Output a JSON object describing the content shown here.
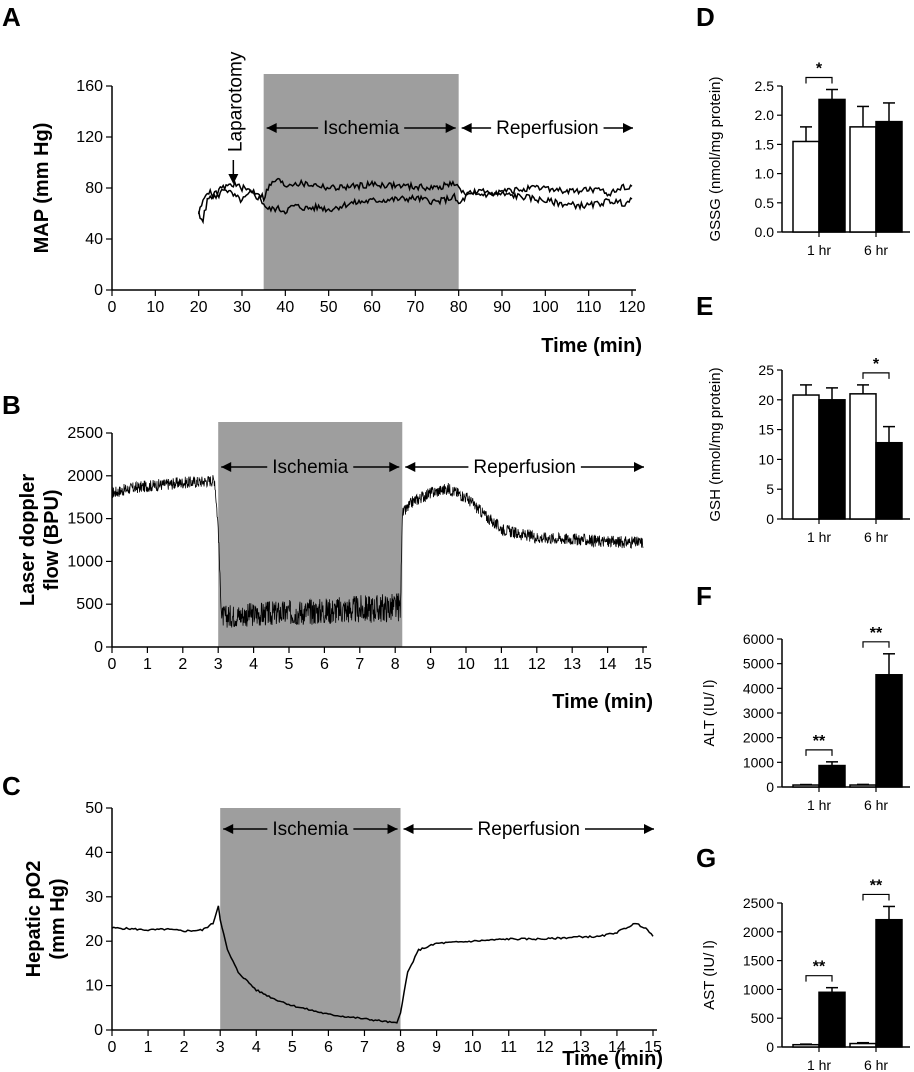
{
  "chart_data": [
    {
      "panel": "A",
      "type": "line",
      "xlabel": "Time (min)",
      "ylabel": "MAP (mm Hg)",
      "xlim": [
        0,
        120
      ],
      "ylim": [
        0,
        160
      ],
      "xticks": [
        0,
        10,
        20,
        30,
        40,
        50,
        60,
        70,
        80,
        90,
        100,
        110,
        120
      ],
      "yticks": [
        0,
        40,
        80,
        120,
        160
      ],
      "shaded_region": [
        35,
        80
      ],
      "annotations": {
        "laparotomy": "Laparotomy",
        "ischemia": "Ischemia",
        "reperfusion": "Reperfusion"
      },
      "series": [
        {
          "style": "solid",
          "x": [
            20,
            22,
            24,
            26,
            28,
            30,
            32,
            34,
            35,
            36,
            38,
            40,
            42,
            45,
            48,
            50,
            55,
            60,
            65,
            70,
            75,
            79,
            80,
            82,
            85,
            90,
            95,
            100,
            105,
            110,
            115,
            118,
            120
          ],
          "y": [
            60,
            78,
            72,
            80,
            74,
            70,
            76,
            72,
            68,
            63,
            64,
            62,
            66,
            64,
            65,
            63,
            68,
            70,
            71,
            72,
            69,
            73,
            67,
            74,
            75,
            75,
            73,
            70,
            67,
            66,
            70,
            68,
            70
          ]
        },
        {
          "style": "dashed",
          "x": [
            20,
            21,
            22,
            24,
            26,
            28,
            30,
            32,
            34,
            35,
            36,
            38,
            40,
            42,
            45,
            48,
            50,
            55,
            60,
            65,
            70,
            75,
            79,
            80,
            82,
            85,
            90,
            95,
            100,
            105,
            110,
            115,
            118,
            120
          ],
          "y": [
            60,
            55,
            70,
            76,
            81,
            83,
            80,
            78,
            76,
            72,
            80,
            87,
            82,
            84,
            83,
            82,
            80,
            81,
            83,
            82,
            81,
            80,
            84,
            79,
            76,
            77,
            77,
            79,
            80,
            77,
            79,
            76,
            81,
            82
          ]
        }
      ]
    },
    {
      "panel": "B",
      "type": "line",
      "xlabel": "Time (min)",
      "ylabel_line1": "Laser doppler",
      "ylabel_line2": "flow (BPU)",
      "xlim": [
        0,
        15
      ],
      "ylim": [
        0,
        2500
      ],
      "xticks": [
        0,
        1,
        2,
        3,
        4,
        5,
        6,
        7,
        8,
        9,
        10,
        11,
        12,
        13,
        14,
        15
      ],
      "yticks": [
        0,
        500,
        1000,
        1500,
        2000,
        2500
      ],
      "shaded_region": [
        3,
        8.2
      ],
      "annotations": {
        "ischemia": "Ischemia",
        "reperfusion": "Reperfusion"
      },
      "series": [
        {
          "x": [
            0,
            0.5,
            1,
            1.5,
            2,
            2.5,
            2.9,
            3.0,
            3.05,
            3.1,
            3.3,
            4,
            5,
            6,
            7,
            8,
            8.15,
            8.2,
            8.5,
            9,
            9.5,
            10,
            10.5,
            11,
            11.5,
            12,
            13,
            14,
            15
          ],
          "y": [
            1800,
            1850,
            1880,
            1900,
            1920,
            1930,
            1950,
            1400,
            800,
            350,
            360,
            380,
            400,
            420,
            440,
            460,
            470,
            1550,
            1700,
            1800,
            1850,
            1750,
            1550,
            1380,
            1320,
            1280,
            1260,
            1230,
            1220
          ]
        }
      ]
    },
    {
      "panel": "C",
      "type": "line",
      "xlabel": "Time (min)",
      "ylabel_line1": "Hepatic pO2",
      "ylabel_line2": "(mm Hg)",
      "xlim": [
        0,
        15
      ],
      "ylim": [
        0,
        50
      ],
      "xticks": [
        0,
        1,
        2,
        3,
        4,
        5,
        6,
        7,
        8,
        9,
        10,
        11,
        12,
        13,
        14,
        15
      ],
      "yticks": [
        0,
        10,
        20,
        30,
        40,
        50
      ],
      "shaded_region": [
        3,
        8
      ],
      "annotations": {
        "ischemia": "Ischemia",
        "reperfusion": "Reperfusion"
      },
      "series": [
        {
          "x": [
            0,
            0.5,
            1,
            1.5,
            2,
            2.5,
            2.8,
            2.95,
            3.0,
            3.2,
            3.5,
            4,
            4.5,
            5,
            5.5,
            6,
            6.5,
            7,
            7.5,
            7.9,
            8.0,
            8.2,
            8.5,
            9,
            10,
            11,
            12,
            13,
            13.5,
            14,
            14.5,
            14.8,
            15
          ],
          "y": [
            23,
            22.8,
            22.5,
            22.7,
            22.3,
            22.5,
            24,
            28,
            25,
            18,
            13,
            9,
            7,
            5.5,
            4.5,
            3.5,
            3,
            2.5,
            2,
            1.5,
            4,
            13,
            18,
            19.5,
            20,
            20.5,
            20.5,
            21,
            21,
            22,
            24,
            23,
            21
          ]
        }
      ]
    },
    {
      "panel": "D",
      "type": "bar",
      "ylabel": "GSSG (nmol/mg protein)",
      "categories": [
        "1 hr",
        "6 hr"
      ],
      "ylim": [
        0,
        2.5
      ],
      "yticks": [
        "0.0",
        "0.5",
        "1.0",
        "1.5",
        "2.0",
        "2.5"
      ],
      "ytick_values": [
        0,
        0.5,
        1.0,
        1.5,
        2.0,
        2.5
      ],
      "series": [
        {
          "fill": "open",
          "values": [
            1.55,
            1.8
          ],
          "errors": [
            0.25,
            0.35
          ]
        },
        {
          "fill": "filled",
          "values": [
            2.27,
            1.89
          ],
          "errors": [
            0.17,
            0.32
          ]
        }
      ],
      "significance": [
        {
          "category": 0,
          "label": "*"
        }
      ]
    },
    {
      "panel": "E",
      "type": "bar",
      "ylabel": "GSH (nmol/mg protein)",
      "categories": [
        "1 hr",
        "6 hr"
      ],
      "ylim": [
        0,
        25
      ],
      "yticks": [
        "0",
        "5",
        "10",
        "15",
        "20",
        "25"
      ],
      "ytick_values": [
        0,
        5,
        10,
        15,
        20,
        25
      ],
      "series": [
        {
          "fill": "open",
          "values": [
            20.8,
            21.0
          ],
          "errors": [
            1.7,
            1.5
          ]
        },
        {
          "fill": "filled",
          "values": [
            20.0,
            12.8
          ],
          "errors": [
            2.0,
            2.7
          ]
        }
      ],
      "significance": [
        {
          "category": 1,
          "label": "*"
        }
      ]
    },
    {
      "panel": "F",
      "type": "bar",
      "ylabel": "ALT (IU/ l)",
      "categories": [
        "1 hr",
        "6 hr"
      ],
      "ylim": [
        0,
        6000
      ],
      "yticks": [
        "0",
        "1000",
        "2000",
        "3000",
        "4000",
        "5000",
        "6000"
      ],
      "ytick_values": [
        0,
        1000,
        2000,
        3000,
        4000,
        5000,
        6000
      ],
      "series": [
        {
          "fill": "open",
          "values": [
            80,
            80
          ],
          "errors": [
            20,
            25
          ]
        },
        {
          "fill": "filled",
          "values": [
            870,
            4550
          ],
          "errors": [
            150,
            850
          ]
        }
      ],
      "significance": [
        {
          "category": 0,
          "label": "**"
        },
        {
          "category": 1,
          "label": "**"
        }
      ]
    },
    {
      "panel": "G",
      "type": "bar",
      "ylabel": "AST (IU/ l)",
      "categories": [
        "1 hr",
        "6 hr"
      ],
      "ylim": [
        0,
        2500
      ],
      "yticks": [
        "0",
        "500",
        "1000",
        "1500",
        "2000",
        "2500"
      ],
      "ytick_values": [
        0,
        500,
        1000,
        1500,
        2000,
        2500
      ],
      "series": [
        {
          "fill": "open",
          "values": [
            40,
            60
          ],
          "errors": [
            10,
            15
          ]
        },
        {
          "fill": "filled",
          "values": [
            950,
            2210
          ],
          "errors": [
            80,
            230
          ]
        }
      ],
      "significance": [
        {
          "category": 0,
          "label": "**"
        },
        {
          "category": 1,
          "label": "**"
        }
      ]
    }
  ]
}
